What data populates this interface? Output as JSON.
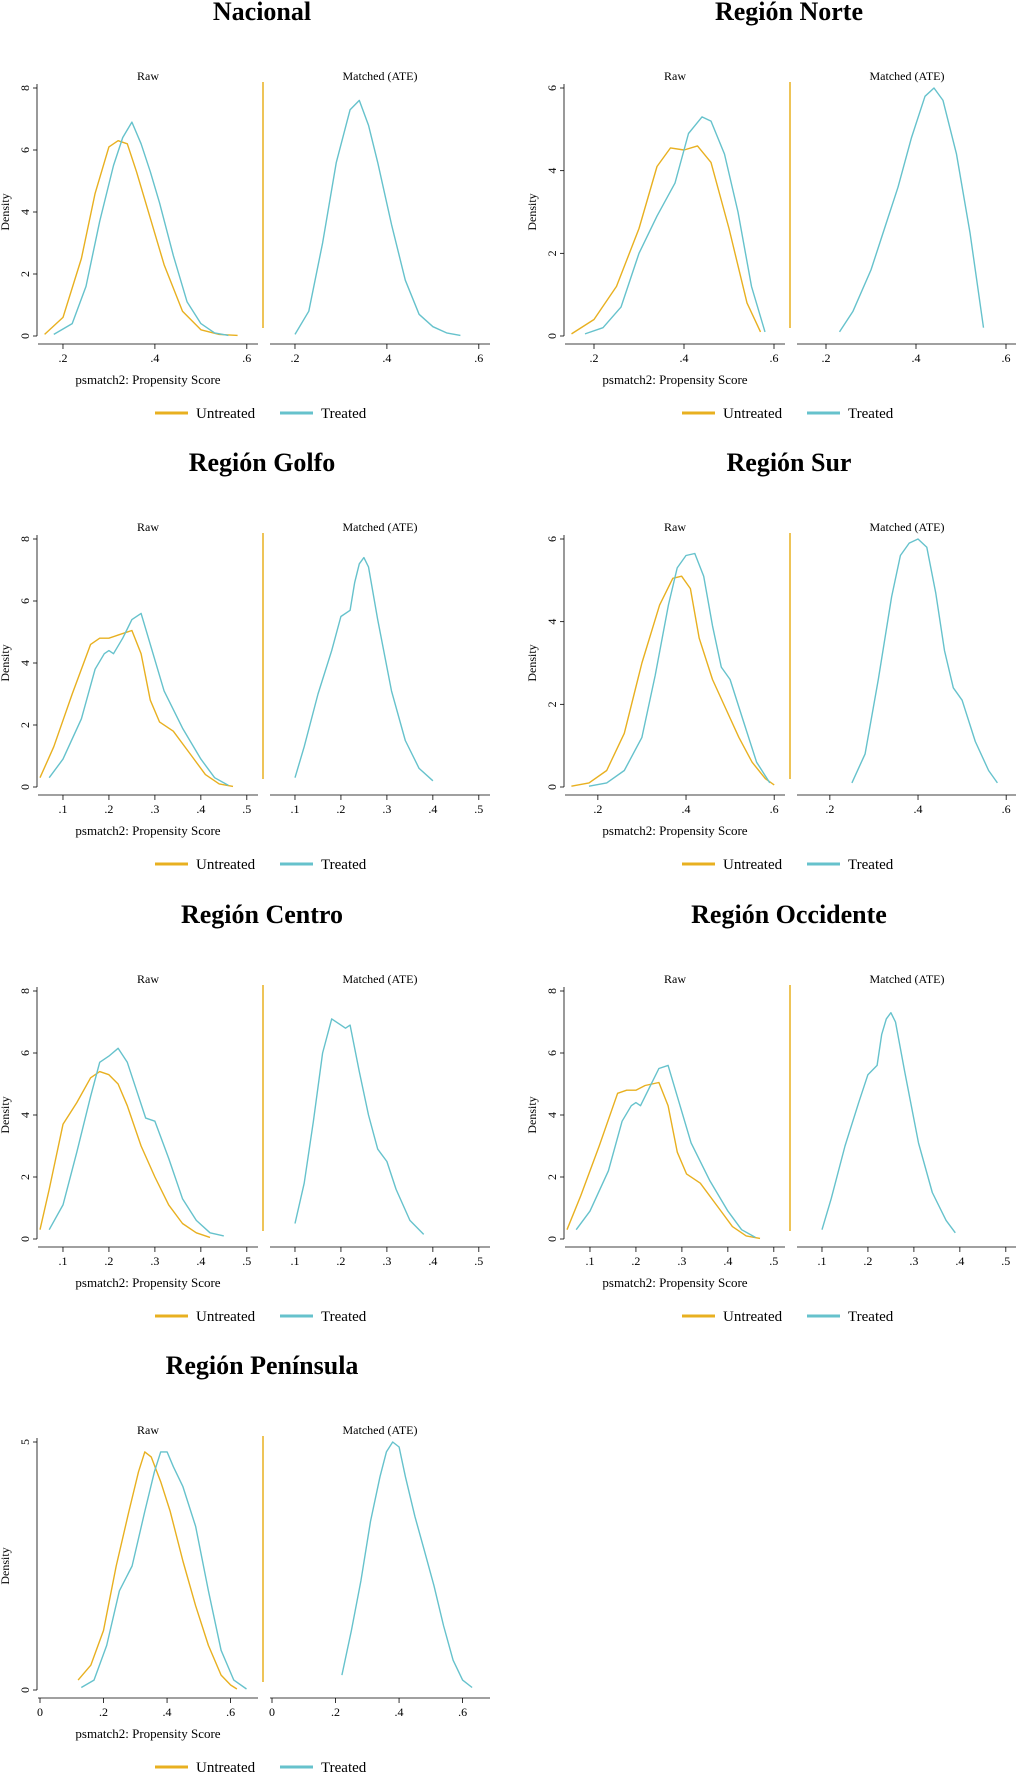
{
  "colors": {
    "untreated": "#e8b020",
    "treated": "#66c2cc",
    "axis": "#000000",
    "divider": "#e8b020"
  },
  "chart_data": [
    {
      "type": "line",
      "title": "Nacional",
      "panels": [
        "Raw",
        "Matched (ATE)"
      ],
      "xlabel": "psmatch2: Propensity Score",
      "ylabel": "Density",
      "xlim": [
        0.15,
        0.62
      ],
      "ylim": [
        0,
        8
      ],
      "xticks": [
        0.2,
        0.4,
        0.6
      ],
      "xtick_labels": [
        ".2",
        ".4",
        ".6"
      ],
      "yticks": [
        0,
        2,
        4,
        6,
        8
      ],
      "ytick_labels": [
        "0",
        "2",
        "4",
        "6",
        "8"
      ],
      "legend": [
        "Untreated",
        "Treated"
      ],
      "series": [
        {
          "name": "Untreated",
          "panel": "Raw",
          "x": [
            0.16,
            0.2,
            0.24,
            0.27,
            0.3,
            0.32,
            0.34,
            0.36,
            0.39,
            0.42,
            0.46,
            0.5,
            0.54,
            0.58
          ],
          "y": [
            0.05,
            0.6,
            2.5,
            4.6,
            6.1,
            6.3,
            6.2,
            5.3,
            3.8,
            2.3,
            0.8,
            0.2,
            0.05,
            0.02
          ]
        },
        {
          "name": "Treated",
          "panel": "Raw",
          "x": [
            0.18,
            0.22,
            0.25,
            0.28,
            0.31,
            0.33,
            0.35,
            0.37,
            0.39,
            0.41,
            0.44,
            0.47,
            0.5,
            0.53,
            0.56
          ],
          "y": [
            0.05,
            0.4,
            1.6,
            3.7,
            5.5,
            6.4,
            6.9,
            6.2,
            5.3,
            4.3,
            2.6,
            1.1,
            0.4,
            0.1,
            0.02
          ]
        },
        {
          "name": "Treated",
          "panel": "Matched (ATE)",
          "x": [
            0.2,
            0.23,
            0.26,
            0.29,
            0.32,
            0.34,
            0.36,
            0.38,
            0.41,
            0.44,
            0.47,
            0.5,
            0.53,
            0.56
          ],
          "y": [
            0.05,
            0.8,
            3.0,
            5.6,
            7.3,
            7.6,
            6.8,
            5.6,
            3.6,
            1.8,
            0.7,
            0.3,
            0.1,
            0.02
          ]
        }
      ]
    },
    {
      "type": "line",
      "title": "Región Norte",
      "panels": [
        "Raw",
        "Matched (ATE)"
      ],
      "xlabel": "psmatch2: Propensity Score",
      "ylabel": "Density",
      "xlim": [
        0.14,
        0.62
      ],
      "ylim": [
        0,
        6
      ],
      "xticks": [
        0.2,
        0.4,
        0.6
      ],
      "xtick_labels": [
        ".2",
        ".4",
        ".6"
      ],
      "yticks": [
        0,
        2,
        4,
        6
      ],
      "ytick_labels": [
        "0",
        "2",
        "4",
        "6"
      ],
      "legend": [
        "Untreated",
        "Treated"
      ],
      "series": [
        {
          "name": "Untreated",
          "panel": "Raw",
          "x": [
            0.15,
            0.2,
            0.25,
            0.3,
            0.34,
            0.37,
            0.4,
            0.43,
            0.46,
            0.5,
            0.54,
            0.57
          ],
          "y": [
            0.05,
            0.4,
            1.2,
            2.6,
            4.1,
            4.55,
            4.5,
            4.6,
            4.2,
            2.6,
            0.8,
            0.1
          ]
        },
        {
          "name": "Treated",
          "panel": "Raw",
          "x": [
            0.18,
            0.22,
            0.26,
            0.3,
            0.34,
            0.38,
            0.41,
            0.44,
            0.46,
            0.49,
            0.52,
            0.55,
            0.58
          ],
          "y": [
            0.05,
            0.2,
            0.7,
            2.0,
            2.9,
            3.7,
            4.9,
            5.3,
            5.2,
            4.4,
            3.0,
            1.2,
            0.1
          ]
        },
        {
          "name": "Treated",
          "panel": "Matched (ATE)",
          "x": [
            0.23,
            0.26,
            0.3,
            0.33,
            0.36,
            0.39,
            0.42,
            0.44,
            0.46,
            0.49,
            0.52,
            0.55
          ],
          "y": [
            0.1,
            0.6,
            1.6,
            2.6,
            3.6,
            4.8,
            5.8,
            6.0,
            5.7,
            4.4,
            2.5,
            0.2
          ]
        }
      ]
    },
    {
      "type": "line",
      "title": "Región Golfo",
      "panels": [
        "Raw",
        "Matched (ATE)"
      ],
      "xlabel": "psmatch2: Propensity Score",
      "ylabel": "Density",
      "xlim": [
        0.05,
        0.52
      ],
      "ylim": [
        0,
        8
      ],
      "xticks": [
        0.1,
        0.2,
        0.3,
        0.4,
        0.5
      ],
      "xtick_labels": [
        ".1",
        ".2",
        ".3",
        ".4",
        ".5"
      ],
      "yticks": [
        0,
        2,
        4,
        6,
        8
      ],
      "ytick_labels": [
        "0",
        "2",
        "4",
        "6",
        "8"
      ],
      "legend": [
        "Untreated",
        "Treated"
      ],
      "series": [
        {
          "name": "Untreated",
          "panel": "Raw",
          "x": [
            0.05,
            0.08,
            0.12,
            0.16,
            0.18,
            0.2,
            0.22,
            0.25,
            0.27,
            0.29,
            0.31,
            0.34,
            0.38,
            0.41,
            0.44,
            0.47
          ],
          "y": [
            0.3,
            1.3,
            3.0,
            4.6,
            4.8,
            4.8,
            4.9,
            5.05,
            4.3,
            2.8,
            2.1,
            1.8,
            1.0,
            0.4,
            0.1,
            0.02
          ]
        },
        {
          "name": "Treated",
          "panel": "Raw",
          "x": [
            0.07,
            0.1,
            0.14,
            0.17,
            0.19,
            0.2,
            0.21,
            0.23,
            0.25,
            0.27,
            0.29,
            0.32,
            0.36,
            0.4,
            0.43,
            0.46
          ],
          "y": [
            0.3,
            0.9,
            2.2,
            3.8,
            4.3,
            4.4,
            4.3,
            4.8,
            5.4,
            5.6,
            4.6,
            3.1,
            1.9,
            0.9,
            0.3,
            0.05
          ]
        },
        {
          "name": "Treated",
          "panel": "Matched (ATE)",
          "x": [
            0.1,
            0.12,
            0.15,
            0.18,
            0.2,
            0.22,
            0.23,
            0.24,
            0.25,
            0.26,
            0.28,
            0.31,
            0.34,
            0.37,
            0.4
          ],
          "y": [
            0.3,
            1.3,
            3.0,
            4.4,
            5.5,
            5.7,
            6.6,
            7.2,
            7.4,
            7.1,
            5.4,
            3.1,
            1.5,
            0.6,
            0.2
          ]
        }
      ]
    },
    {
      "type": "line",
      "title": "Región Sur",
      "panels": [
        "Raw",
        "Matched (ATE)"
      ],
      "xlabel": "psmatch2: Propensity Score",
      "ylabel": "Density",
      "xlim": [
        0.13,
        0.62
      ],
      "ylim": [
        0,
        6
      ],
      "xticks": [
        0.2,
        0.4,
        0.6
      ],
      "xtick_labels": [
        ".2",
        ".4",
        ".6"
      ],
      "yticks": [
        0,
        2,
        4,
        6
      ],
      "ytick_labels": [
        "0",
        "2",
        "4",
        "6"
      ],
      "legend": [
        "Untreated",
        "Treated"
      ],
      "series": [
        {
          "name": "Untreated",
          "panel": "Raw",
          "x": [
            0.14,
            0.18,
            0.22,
            0.26,
            0.3,
            0.34,
            0.37,
            0.39,
            0.41,
            0.43,
            0.46,
            0.49,
            0.52,
            0.55,
            0.58,
            0.6
          ],
          "y": [
            0.02,
            0.1,
            0.4,
            1.3,
            3.0,
            4.4,
            5.05,
            5.1,
            4.8,
            3.6,
            2.6,
            1.9,
            1.2,
            0.6,
            0.2,
            0.05
          ]
        },
        {
          "name": "Treated",
          "panel": "Raw",
          "x": [
            0.18,
            0.22,
            0.26,
            0.3,
            0.33,
            0.36,
            0.38,
            0.4,
            0.42,
            0.44,
            0.46,
            0.48,
            0.5,
            0.53,
            0.56,
            0.59
          ],
          "y": [
            0.02,
            0.1,
            0.4,
            1.2,
            2.7,
            4.4,
            5.3,
            5.6,
            5.65,
            5.1,
            3.9,
            2.9,
            2.6,
            1.6,
            0.6,
            0.1
          ]
        },
        {
          "name": "Treated",
          "panel": "Matched (ATE)",
          "x": [
            0.25,
            0.28,
            0.31,
            0.34,
            0.36,
            0.38,
            0.4,
            0.42,
            0.44,
            0.46,
            0.48,
            0.5,
            0.53,
            0.56,
            0.58
          ],
          "y": [
            0.1,
            0.8,
            2.6,
            4.6,
            5.6,
            5.9,
            6.0,
            5.8,
            4.7,
            3.3,
            2.4,
            2.1,
            1.1,
            0.4,
            0.1
          ]
        }
      ]
    },
    {
      "type": "line",
      "title": "Región Centro",
      "panels": [
        "Raw",
        "Matched (ATE)"
      ],
      "xlabel": "psmatch2: Propensity Score",
      "ylabel": "Density",
      "xlim": [
        0.05,
        0.52
      ],
      "ylim": [
        0,
        8
      ],
      "xticks": [
        0.1,
        0.2,
        0.3,
        0.4,
        0.5
      ],
      "xtick_labels": [
        ".1",
        ".2",
        ".3",
        ".4",
        ".5"
      ],
      "yticks": [
        0,
        2,
        4,
        6,
        8
      ],
      "ytick_labels": [
        "0",
        "2",
        "4",
        "6",
        "8"
      ],
      "legend": [
        "Untreated",
        "Treated"
      ],
      "series": [
        {
          "name": "Untreated",
          "panel": "Raw",
          "x": [
            0.05,
            0.07,
            0.1,
            0.13,
            0.16,
            0.18,
            0.2,
            0.22,
            0.24,
            0.27,
            0.3,
            0.33,
            0.36,
            0.39,
            0.42
          ],
          "y": [
            0.3,
            1.6,
            3.7,
            4.4,
            5.2,
            5.4,
            5.3,
            5.0,
            4.3,
            3.0,
            2.0,
            1.1,
            0.5,
            0.2,
            0.05
          ]
        },
        {
          "name": "Treated",
          "panel": "Raw",
          "x": [
            0.07,
            0.1,
            0.13,
            0.16,
            0.18,
            0.2,
            0.22,
            0.24,
            0.26,
            0.28,
            0.3,
            0.33,
            0.36,
            0.39,
            0.42,
            0.45
          ],
          "y": [
            0.3,
            1.1,
            2.8,
            4.6,
            5.7,
            5.9,
            6.15,
            5.7,
            4.8,
            3.9,
            3.8,
            2.6,
            1.3,
            0.6,
            0.2,
            0.1
          ]
        },
        {
          "name": "Treated",
          "panel": "Matched (ATE)",
          "x": [
            0.1,
            0.12,
            0.14,
            0.16,
            0.18,
            0.2,
            0.21,
            0.22,
            0.24,
            0.26,
            0.28,
            0.3,
            0.32,
            0.35,
            0.38
          ],
          "y": [
            0.5,
            1.8,
            3.8,
            6.0,
            7.1,
            6.9,
            6.8,
            6.9,
            5.4,
            4.0,
            2.9,
            2.5,
            1.6,
            0.6,
            0.15
          ]
        }
      ]
    },
    {
      "type": "line",
      "title": "Región Occidente",
      "panels": [
        "Raw",
        "Matched (ATE)"
      ],
      "xlabel": "psmatch2: Propensity Score",
      "ylabel": "Density",
      "xlim": [
        0.05,
        0.52
      ],
      "ylim": [
        0,
        8
      ],
      "xticks": [
        0.1,
        0.2,
        0.3,
        0.4,
        0.5
      ],
      "xtick_labels": [
        ".1",
        ".2",
        ".3",
        ".4",
        ".5"
      ],
      "yticks": [
        0,
        2,
        4,
        6,
        8
      ],
      "ytick_labels": [
        "0",
        "2",
        "4",
        "6",
        "8"
      ],
      "legend": [
        "Untreated",
        "Treated"
      ],
      "series": [
        {
          "name": "Untreated",
          "panel": "Raw",
          "x": [
            0.05,
            0.08,
            0.12,
            0.16,
            0.18,
            0.2,
            0.22,
            0.25,
            0.27,
            0.29,
            0.31,
            0.34,
            0.38,
            0.41,
            0.44,
            0.47
          ],
          "y": [
            0.3,
            1.4,
            3.0,
            4.7,
            4.8,
            4.8,
            4.95,
            5.05,
            4.3,
            2.8,
            2.1,
            1.8,
            1.0,
            0.4,
            0.1,
            0.02
          ]
        },
        {
          "name": "Treated",
          "panel": "Raw",
          "x": [
            0.07,
            0.1,
            0.14,
            0.17,
            0.19,
            0.2,
            0.21,
            0.23,
            0.25,
            0.27,
            0.29,
            0.32,
            0.36,
            0.4,
            0.43,
            0.46
          ],
          "y": [
            0.3,
            0.9,
            2.2,
            3.8,
            4.3,
            4.4,
            4.3,
            4.9,
            5.5,
            5.6,
            4.6,
            3.1,
            1.9,
            0.9,
            0.3,
            0.05
          ]
        },
        {
          "name": "Treated",
          "panel": "Matched (ATE)",
          "x": [
            0.1,
            0.12,
            0.15,
            0.18,
            0.2,
            0.22,
            0.23,
            0.24,
            0.25,
            0.26,
            0.28,
            0.31,
            0.34,
            0.37,
            0.39
          ],
          "y": [
            0.3,
            1.3,
            3.0,
            4.4,
            5.3,
            5.6,
            6.6,
            7.1,
            7.3,
            7.0,
            5.4,
            3.1,
            1.5,
            0.6,
            0.2
          ]
        }
      ]
    },
    {
      "type": "line",
      "title": "Región Península",
      "panels": [
        "Raw",
        "Matched (ATE)"
      ],
      "xlabel": "psmatch2: Propensity Score",
      "ylabel": "Density",
      "xlim": [
        0,
        0.68
      ],
      "ylim": [
        0,
        5
      ],
      "xticks": [
        0,
        0.2,
        0.4,
        0.6
      ],
      "xtick_labels": [
        "0",
        ".2",
        ".4",
        ".6"
      ],
      "yticks": [
        0,
        5
      ],
      "ytick_labels": [
        "0",
        "5"
      ],
      "legend": [
        "Untreated",
        "Treated"
      ],
      "series": [
        {
          "name": "Untreated",
          "panel": "Raw",
          "x": [
            0.12,
            0.16,
            0.2,
            0.24,
            0.28,
            0.31,
            0.33,
            0.35,
            0.38,
            0.41,
            0.45,
            0.49,
            0.53,
            0.57,
            0.6,
            0.62
          ],
          "y": [
            0.2,
            0.5,
            1.2,
            2.5,
            3.6,
            4.4,
            4.8,
            4.7,
            4.2,
            3.6,
            2.6,
            1.7,
            0.9,
            0.3,
            0.1,
            0.02
          ]
        },
        {
          "name": "Treated",
          "panel": "Raw",
          "x": [
            0.13,
            0.17,
            0.21,
            0.25,
            0.29,
            0.33,
            0.36,
            0.38,
            0.4,
            0.42,
            0.45,
            0.49,
            0.53,
            0.57,
            0.61,
            0.65
          ],
          "y": [
            0.05,
            0.2,
            0.9,
            2.0,
            2.5,
            3.6,
            4.4,
            4.8,
            4.8,
            4.5,
            4.1,
            3.3,
            2.0,
            0.8,
            0.2,
            0.02
          ]
        },
        {
          "name": "Treated",
          "panel": "Matched (ATE)",
          "x": [
            0.22,
            0.25,
            0.28,
            0.31,
            0.34,
            0.36,
            0.38,
            0.4,
            0.42,
            0.45,
            0.48,
            0.51,
            0.54,
            0.57,
            0.6,
            0.63
          ],
          "y": [
            0.3,
            1.2,
            2.2,
            3.4,
            4.3,
            4.8,
            5.0,
            4.9,
            4.3,
            3.5,
            2.8,
            2.1,
            1.3,
            0.6,
            0.2,
            0.05
          ]
        }
      ]
    }
  ]
}
